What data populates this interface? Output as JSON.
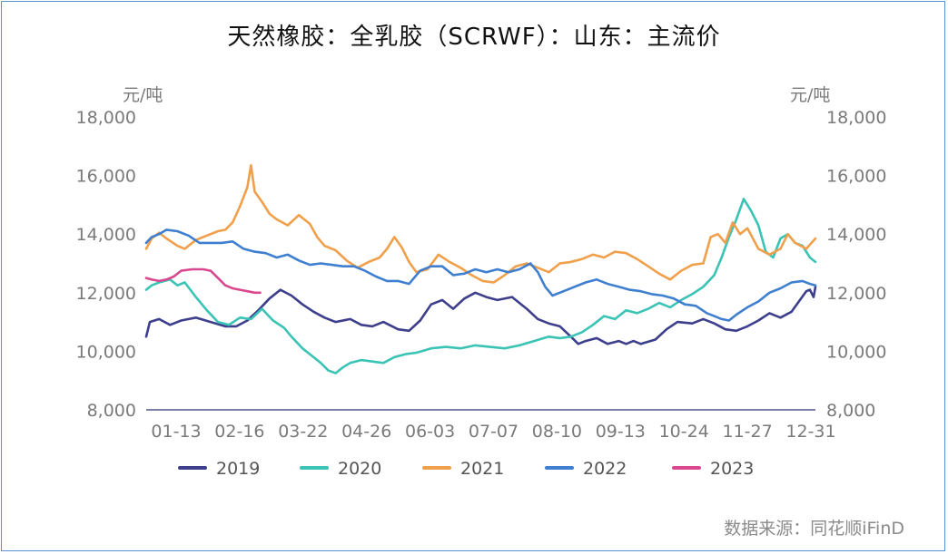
{
  "chart_data": {
    "type": "line",
    "title": "天然橡胶：全乳胶（SCRWF）：山东：主流价",
    "y_unit_left": "元/吨",
    "y_unit_right": "元/吨",
    "ylim": [
      8000,
      18000
    ],
    "yticks": [
      "18,000",
      "16,000",
      "14,000",
      "12,000",
      "10,000",
      "8,000"
    ],
    "ytick_values": [
      18000,
      16000,
      14000,
      12000,
      10000,
      8000
    ],
    "x_tick_labels": [
      "01-13",
      "02-16",
      "03-22",
      "04-26",
      "06-03",
      "07-07",
      "08-10",
      "09-13",
      "10-24",
      "11-27",
      "12-31"
    ],
    "x_day_range": [
      1,
      365
    ],
    "legend_position": "bottom",
    "series": [
      {
        "name": "2019",
        "color": "#3d3f8c",
        "points": [
          [
            1,
            10500
          ],
          [
            3,
            11000
          ],
          [
            8,
            11100
          ],
          [
            14,
            10900
          ],
          [
            20,
            11050
          ],
          [
            28,
            11150
          ],
          [
            36,
            11000
          ],
          [
            44,
            10850
          ],
          [
            50,
            10850
          ],
          [
            56,
            11050
          ],
          [
            62,
            11400
          ],
          [
            68,
            11800
          ],
          [
            74,
            12100
          ],
          [
            80,
            11900
          ],
          [
            86,
            11600
          ],
          [
            92,
            11350
          ],
          [
            98,
            11150
          ],
          [
            104,
            11000
          ],
          [
            112,
            11100
          ],
          [
            118,
            10900
          ],
          [
            124,
            10850
          ],
          [
            130,
            11000
          ],
          [
            138,
            10750
          ],
          [
            144,
            10700
          ],
          [
            150,
            11050
          ],
          [
            156,
            11600
          ],
          [
            162,
            11750
          ],
          [
            168,
            11450
          ],
          [
            174,
            11800
          ],
          [
            180,
            12000
          ],
          [
            186,
            11850
          ],
          [
            192,
            11750
          ],
          [
            200,
            11850
          ],
          [
            208,
            11450
          ],
          [
            214,
            11100
          ],
          [
            220,
            10950
          ],
          [
            226,
            10850
          ],
          [
            232,
            10500
          ],
          [
            236,
            10250
          ],
          [
            240,
            10350
          ],
          [
            246,
            10450
          ],
          [
            252,
            10250
          ],
          [
            258,
            10350
          ],
          [
            262,
            10250
          ],
          [
            266,
            10350
          ],
          [
            270,
            10250
          ],
          [
            278,
            10400
          ],
          [
            284,
            10750
          ],
          [
            290,
            11000
          ],
          [
            298,
            10950
          ],
          [
            304,
            11100
          ],
          [
            310,
            10950
          ],
          [
            316,
            10750
          ],
          [
            322,
            10700
          ],
          [
            328,
            10850
          ],
          [
            334,
            11050
          ],
          [
            340,
            11300
          ],
          [
            346,
            11150
          ],
          [
            352,
            11350
          ],
          [
            356,
            11700
          ],
          [
            360,
            12050
          ],
          [
            362,
            12100
          ],
          [
            364,
            11850
          ],
          [
            365,
            12200
          ]
        ]
      },
      {
        "name": "2020",
        "color": "#3bc3b5",
        "points": [
          [
            1,
            12100
          ],
          [
            4,
            12250
          ],
          [
            8,
            12350
          ],
          [
            14,
            12450
          ],
          [
            18,
            12250
          ],
          [
            22,
            12350
          ],
          [
            28,
            11850
          ],
          [
            34,
            11400
          ],
          [
            40,
            11000
          ],
          [
            46,
            10900
          ],
          [
            52,
            11150
          ],
          [
            58,
            11100
          ],
          [
            64,
            11450
          ],
          [
            70,
            11050
          ],
          [
            76,
            10800
          ],
          [
            80,
            10500
          ],
          [
            86,
            10100
          ],
          [
            92,
            9800
          ],
          [
            96,
            9600
          ],
          [
            100,
            9350
          ],
          [
            104,
            9250
          ],
          [
            108,
            9450
          ],
          [
            112,
            9600
          ],
          [
            118,
            9700
          ],
          [
            124,
            9650
          ],
          [
            130,
            9600
          ],
          [
            136,
            9800
          ],
          [
            142,
            9900
          ],
          [
            148,
            9950
          ],
          [
            156,
            10100
          ],
          [
            164,
            10150
          ],
          [
            172,
            10100
          ],
          [
            180,
            10200
          ],
          [
            188,
            10150
          ],
          [
            196,
            10100
          ],
          [
            204,
            10200
          ],
          [
            212,
            10350
          ],
          [
            220,
            10500
          ],
          [
            226,
            10450
          ],
          [
            232,
            10500
          ],
          [
            238,
            10650
          ],
          [
            244,
            10900
          ],
          [
            250,
            11200
          ],
          [
            256,
            11100
          ],
          [
            262,
            11400
          ],
          [
            268,
            11300
          ],
          [
            274,
            11450
          ],
          [
            280,
            11650
          ],
          [
            286,
            11500
          ],
          [
            292,
            11750
          ],
          [
            298,
            11950
          ],
          [
            304,
            12200
          ],
          [
            310,
            12600
          ],
          [
            314,
            13200
          ],
          [
            318,
            13900
          ],
          [
            322,
            14500
          ],
          [
            326,
            15200
          ],
          [
            330,
            14800
          ],
          [
            334,
            14300
          ],
          [
            338,
            13400
          ],
          [
            342,
            13200
          ],
          [
            346,
            13850
          ],
          [
            350,
            14000
          ],
          [
            354,
            13700
          ],
          [
            358,
            13600
          ],
          [
            362,
            13200
          ],
          [
            365,
            13050
          ]
        ]
      },
      {
        "name": "2021",
        "color": "#f0a04b",
        "points": [
          [
            1,
            13500
          ],
          [
            4,
            13850
          ],
          [
            8,
            14050
          ],
          [
            12,
            13850
          ],
          [
            18,
            13600
          ],
          [
            22,
            13500
          ],
          [
            28,
            13800
          ],
          [
            34,
            13950
          ],
          [
            40,
            14100
          ],
          [
            44,
            14150
          ],
          [
            48,
            14400
          ],
          [
            52,
            14950
          ],
          [
            56,
            15600
          ],
          [
            58,
            16350
          ],
          [
            60,
            15450
          ],
          [
            64,
            15100
          ],
          [
            68,
            14700
          ],
          [
            72,
            14500
          ],
          [
            78,
            14300
          ],
          [
            84,
            14650
          ],
          [
            90,
            14350
          ],
          [
            94,
            13900
          ],
          [
            98,
            13600
          ],
          [
            104,
            13450
          ],
          [
            110,
            13100
          ],
          [
            116,
            12850
          ],
          [
            122,
            13050
          ],
          [
            128,
            13200
          ],
          [
            132,
            13500
          ],
          [
            136,
            13900
          ],
          [
            140,
            13550
          ],
          [
            144,
            13050
          ],
          [
            148,
            12700
          ],
          [
            154,
            12800
          ],
          [
            160,
            13300
          ],
          [
            166,
            13050
          ],
          [
            172,
            12850
          ],
          [
            178,
            12600
          ],
          [
            184,
            12400
          ],
          [
            190,
            12350
          ],
          [
            196,
            12600
          ],
          [
            202,
            12900
          ],
          [
            208,
            13000
          ],
          [
            214,
            12850
          ],
          [
            220,
            12700
          ],
          [
            226,
            13000
          ],
          [
            232,
            13050
          ],
          [
            238,
            13150
          ],
          [
            244,
            13300
          ],
          [
            250,
            13200
          ],
          [
            256,
            13400
          ],
          [
            262,
            13350
          ],
          [
            268,
            13150
          ],
          [
            274,
            12900
          ],
          [
            280,
            12650
          ],
          [
            286,
            12450
          ],
          [
            292,
            12750
          ],
          [
            298,
            12950
          ],
          [
            304,
            13000
          ],
          [
            308,
            13900
          ],
          [
            312,
            14000
          ],
          [
            316,
            13700
          ],
          [
            320,
            14400
          ],
          [
            324,
            14000
          ],
          [
            328,
            14200
          ],
          [
            334,
            13500
          ],
          [
            340,
            13300
          ],
          [
            346,
            13500
          ],
          [
            350,
            14000
          ],
          [
            354,
            13700
          ],
          [
            360,
            13500
          ],
          [
            365,
            13850
          ]
        ]
      },
      {
        "name": "2022",
        "color": "#3f7fd0",
        "points": [
          [
            1,
            13700
          ],
          [
            4,
            13900
          ],
          [
            8,
            14000
          ],
          [
            12,
            14150
          ],
          [
            18,
            14100
          ],
          [
            24,
            13950
          ],
          [
            30,
            13700
          ],
          [
            36,
            13700
          ],
          [
            42,
            13700
          ],
          [
            48,
            13750
          ],
          [
            54,
            13500
          ],
          [
            60,
            13400
          ],
          [
            66,
            13350
          ],
          [
            72,
            13200
          ],
          [
            78,
            13300
          ],
          [
            84,
            13100
          ],
          [
            90,
            12950
          ],
          [
            96,
            13000
          ],
          [
            102,
            12950
          ],
          [
            108,
            12900
          ],
          [
            114,
            12900
          ],
          [
            120,
            12750
          ],
          [
            126,
            12550
          ],
          [
            132,
            12400
          ],
          [
            138,
            12400
          ],
          [
            144,
            12300
          ],
          [
            150,
            12750
          ],
          [
            156,
            12900
          ],
          [
            162,
            12900
          ],
          [
            168,
            12600
          ],
          [
            174,
            12650
          ],
          [
            180,
            12800
          ],
          [
            186,
            12700
          ],
          [
            192,
            12800
          ],
          [
            198,
            12700
          ],
          [
            204,
            12800
          ],
          [
            210,
            13000
          ],
          [
            214,
            12700
          ],
          [
            218,
            12200
          ],
          [
            222,
            11900
          ],
          [
            228,
            12050
          ],
          [
            234,
            12200
          ],
          [
            240,
            12350
          ],
          [
            246,
            12450
          ],
          [
            252,
            12300
          ],
          [
            258,
            12200
          ],
          [
            264,
            12100
          ],
          [
            270,
            12050
          ],
          [
            276,
            11950
          ],
          [
            282,
            11900
          ],
          [
            288,
            11800
          ],
          [
            294,
            11600
          ],
          [
            300,
            11550
          ],
          [
            306,
            11300
          ],
          [
            310,
            11200
          ],
          [
            314,
            11100
          ],
          [
            318,
            11050
          ],
          [
            322,
            11250
          ],
          [
            328,
            11500
          ],
          [
            334,
            11700
          ],
          [
            340,
            12000
          ],
          [
            346,
            12150
          ],
          [
            352,
            12350
          ],
          [
            358,
            12400
          ],
          [
            362,
            12300
          ],
          [
            365,
            12250
          ]
        ]
      },
      {
        "name": "2023",
        "color": "#d9488f",
        "points": [
          [
            1,
            12500
          ],
          [
            4,
            12450
          ],
          [
            8,
            12400
          ],
          [
            12,
            12450
          ],
          [
            16,
            12550
          ],
          [
            20,
            12750
          ],
          [
            26,
            12800
          ],
          [
            32,
            12800
          ],
          [
            36,
            12750
          ],
          [
            40,
            12500
          ],
          [
            44,
            12250
          ],
          [
            48,
            12150
          ],
          [
            52,
            12100
          ],
          [
            56,
            12050
          ],
          [
            60,
            12000
          ],
          [
            63,
            12000
          ]
        ]
      }
    ],
    "source": "数据来源：同花顺iFinD"
  }
}
